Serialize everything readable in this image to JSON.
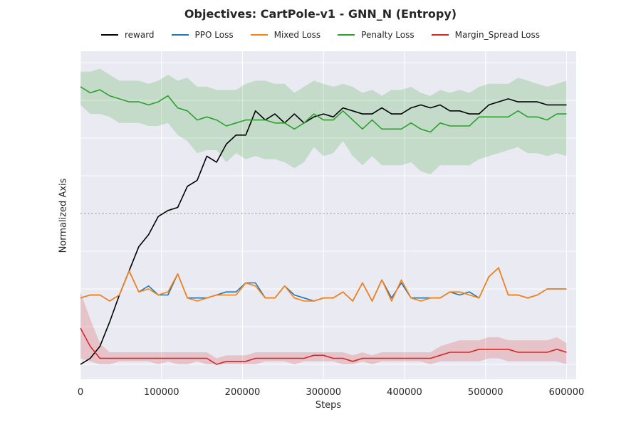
{
  "chart_data": {
    "type": "line",
    "title": "Objectives: CartPole-v1 - GNN_N (Entropy)",
    "xlabel": "Steps",
    "ylabel": "Normalized Axis",
    "xlim": [
      0,
      610000
    ],
    "ylim": [
      0,
      1
    ],
    "xticks": [
      0,
      100000,
      200000,
      300000,
      400000,
      500000,
      600000
    ],
    "xtick_labels": [
      "0",
      "100000",
      "200000",
      "300000",
      "400000",
      "500000",
      "600000"
    ],
    "grid": true,
    "legend_position": "top-center",
    "reference_line": {
      "y": 0.5,
      "style": "dashed",
      "color": "#888888"
    },
    "x": [
      0,
      12000,
      24000,
      36000,
      48000,
      60000,
      72000,
      84000,
      96000,
      108000,
      120000,
      132000,
      144000,
      156000,
      168000,
      180000,
      192000,
      204000,
      216000,
      228000,
      240000,
      252000,
      264000,
      276000,
      288000,
      300000,
      312000,
      324000,
      336000,
      348000,
      360000,
      372000,
      384000,
      396000,
      408000,
      420000,
      432000,
      444000,
      456000,
      468000,
      480000,
      492000,
      504000,
      516000,
      528000,
      540000,
      552000,
      564000,
      576000,
      588000,
      600000
    ],
    "series": [
      {
        "name": "reward",
        "color": "#000000",
        "values": [
          0.0,
          0.02,
          0.06,
          0.14,
          0.23,
          0.31,
          0.39,
          0.43,
          0.49,
          0.51,
          0.52,
          0.59,
          0.61,
          0.69,
          0.67,
          0.73,
          0.76,
          0.76,
          0.84,
          0.81,
          0.83,
          0.8,
          0.83,
          0.8,
          0.82,
          0.83,
          0.82,
          0.85,
          0.84,
          0.83,
          0.83,
          0.85,
          0.83,
          0.83,
          0.85,
          0.86,
          0.85,
          0.86,
          0.84,
          0.84,
          0.83,
          0.83,
          0.86,
          0.87,
          0.88,
          0.87,
          0.87,
          0.87,
          0.86,
          0.86,
          0.86
        ]
      },
      {
        "name": "PPO Loss",
        "color": "#1f77b4",
        "values": [
          0.22,
          0.23,
          0.23,
          0.21,
          0.23,
          0.31,
          0.24,
          0.26,
          0.23,
          0.23,
          0.3,
          0.22,
          0.22,
          0.22,
          0.23,
          0.24,
          0.24,
          0.27,
          0.27,
          0.22,
          0.22,
          0.26,
          0.23,
          0.22,
          0.21,
          0.22,
          0.22,
          0.24,
          0.21,
          0.27,
          0.21,
          0.28,
          0.22,
          0.27,
          0.22,
          0.22,
          0.22,
          0.22,
          0.24,
          0.23,
          0.24,
          0.22,
          0.29,
          0.32,
          0.23,
          0.23,
          0.22,
          0.23,
          0.25,
          0.25,
          0.25
        ]
      },
      {
        "name": "Mixed Loss",
        "color": "#ff7f0e",
        "values": [
          0.22,
          0.23,
          0.23,
          0.21,
          0.23,
          0.31,
          0.24,
          0.25,
          0.23,
          0.24,
          0.3,
          0.22,
          0.21,
          0.22,
          0.23,
          0.23,
          0.23,
          0.27,
          0.26,
          0.22,
          0.22,
          0.26,
          0.22,
          0.21,
          0.21,
          0.22,
          0.22,
          0.24,
          0.21,
          0.27,
          0.21,
          0.28,
          0.21,
          0.28,
          0.22,
          0.21,
          0.22,
          0.22,
          0.24,
          0.24,
          0.23,
          0.22,
          0.29,
          0.32,
          0.23,
          0.23,
          0.22,
          0.23,
          0.25,
          0.25,
          0.25
        ]
      },
      {
        "name": "Penalty Loss",
        "color": "#2ca02c",
        "values": [
          0.92,
          0.9,
          0.91,
          0.89,
          0.88,
          0.87,
          0.87,
          0.86,
          0.87,
          0.89,
          0.85,
          0.84,
          0.81,
          0.82,
          0.81,
          0.79,
          0.8,
          0.81,
          0.81,
          0.81,
          0.8,
          0.8,
          0.78,
          0.8,
          0.83,
          0.81,
          0.81,
          0.84,
          0.81,
          0.78,
          0.81,
          0.78,
          0.78,
          0.78,
          0.8,
          0.78,
          0.77,
          0.8,
          0.79,
          0.79,
          0.79,
          0.82,
          0.82,
          0.82,
          0.82,
          0.84,
          0.82,
          0.82,
          0.81,
          0.83,
          0.83
        ],
        "band_upper": [
          0.97,
          0.97,
          0.98,
          0.96,
          0.94,
          0.94,
          0.94,
          0.93,
          0.94,
          0.96,
          0.94,
          0.95,
          0.92,
          0.92,
          0.91,
          0.91,
          0.91,
          0.93,
          0.94,
          0.94,
          0.93,
          0.93,
          0.9,
          0.92,
          0.94,
          0.93,
          0.92,
          0.93,
          0.92,
          0.9,
          0.91,
          0.89,
          0.91,
          0.91,
          0.92,
          0.9,
          0.89,
          0.91,
          0.9,
          0.91,
          0.9,
          0.92,
          0.93,
          0.93,
          0.93,
          0.95,
          0.94,
          0.93,
          0.92,
          0.93,
          0.94
        ],
        "band_lower": [
          0.86,
          0.83,
          0.83,
          0.82,
          0.8,
          0.8,
          0.8,
          0.79,
          0.79,
          0.8,
          0.76,
          0.74,
          0.7,
          0.71,
          0.71,
          0.67,
          0.7,
          0.68,
          0.69,
          0.68,
          0.68,
          0.67,
          0.65,
          0.67,
          0.72,
          0.69,
          0.7,
          0.74,
          0.69,
          0.66,
          0.69,
          0.66,
          0.66,
          0.66,
          0.67,
          0.64,
          0.63,
          0.66,
          0.66,
          0.66,
          0.66,
          0.68,
          0.69,
          0.7,
          0.71,
          0.72,
          0.7,
          0.7,
          0.69,
          0.7,
          0.69
        ]
      },
      {
        "name": "Margin_Spread Loss",
        "color": "#d62728",
        "values": [
          0.12,
          0.06,
          0.02,
          0.02,
          0.02,
          0.02,
          0.02,
          0.02,
          0.02,
          0.02,
          0.02,
          0.02,
          0.02,
          0.02,
          0.0,
          0.01,
          0.01,
          0.01,
          0.02,
          0.02,
          0.02,
          0.02,
          0.02,
          0.02,
          0.03,
          0.03,
          0.02,
          0.02,
          0.01,
          0.02,
          0.02,
          0.02,
          0.02,
          0.02,
          0.02,
          0.02,
          0.02,
          0.03,
          0.04,
          0.04,
          0.04,
          0.05,
          0.05,
          0.05,
          0.05,
          0.04,
          0.04,
          0.04,
          0.04,
          0.05,
          0.04
        ],
        "band_upper": [
          0.24,
          0.15,
          0.07,
          0.04,
          0.04,
          0.04,
          0.04,
          0.04,
          0.04,
          0.04,
          0.04,
          0.04,
          0.04,
          0.04,
          0.02,
          0.03,
          0.03,
          0.03,
          0.04,
          0.04,
          0.04,
          0.04,
          0.04,
          0.04,
          0.04,
          0.04,
          0.04,
          0.04,
          0.03,
          0.04,
          0.03,
          0.04,
          0.04,
          0.04,
          0.04,
          0.04,
          0.04,
          0.06,
          0.07,
          0.08,
          0.08,
          0.08,
          0.09,
          0.09,
          0.08,
          0.08,
          0.08,
          0.08,
          0.08,
          0.09,
          0.07
        ],
        "band_lower": [
          0.02,
          0.01,
          0.0,
          0.0,
          0.01,
          0.01,
          0.01,
          0.01,
          0.0,
          0.01,
          0.0,
          0.0,
          0.01,
          0.0,
          0.0,
          0.0,
          0.0,
          0.0,
          0.0,
          0.01,
          0.01,
          0.01,
          0.0,
          0.01,
          0.01,
          0.01,
          0.01,
          0.0,
          0.0,
          0.01,
          0.0,
          0.01,
          0.01,
          0.01,
          0.01,
          0.01,
          0.0,
          0.01,
          0.01,
          0.01,
          0.01,
          0.01,
          0.02,
          0.02,
          0.01,
          0.01,
          0.01,
          0.01,
          0.01,
          0.01,
          0.0
        ]
      }
    ]
  }
}
